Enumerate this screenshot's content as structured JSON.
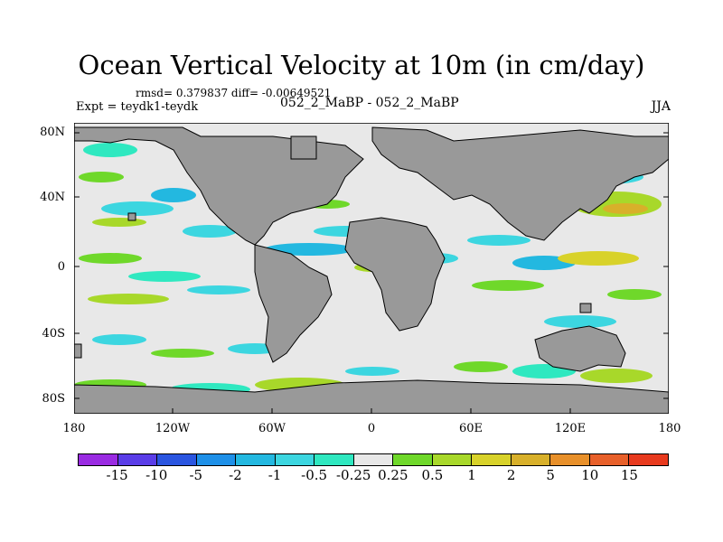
{
  "title": "Ocean Vertical Velocity at 10m (in cm/day)",
  "stats": "rmsd= 0.379837 diff= -0.00649521",
  "expt": "Expt = teydk1-teydk",
  "case": "052_2_MaBP - 052_2_MaBP",
  "season": "JJA",
  "lat_labels": [
    "80N",
    "40N",
    "0",
    "40S",
    "80S"
  ],
  "lon_labels": [
    "180",
    "120W",
    "60W",
    "0",
    "60E",
    "120E",
    "180"
  ],
  "colorbar": {
    "colors": [
      "#9a2be2",
      "#5a3de8",
      "#2a55e0",
      "#1e90e8",
      "#23b8e0",
      "#3cd6e0",
      "#2fe8c0",
      "#e8e8e8",
      "#6fd82a",
      "#a8d82a",
      "#d8d22a",
      "#d8b02a",
      "#e8902a",
      "#e8602a",
      "#e83a1e"
    ],
    "labels": [
      "-15",
      "-10",
      "-5",
      "-2",
      "-1",
      "-0.5",
      "-0.25",
      "0.25",
      "0.5",
      "1",
      "2",
      "5",
      "10",
      "15"
    ]
  },
  "palette": {
    "land": "#999999",
    "ocean": "#e8e8e8"
  }
}
